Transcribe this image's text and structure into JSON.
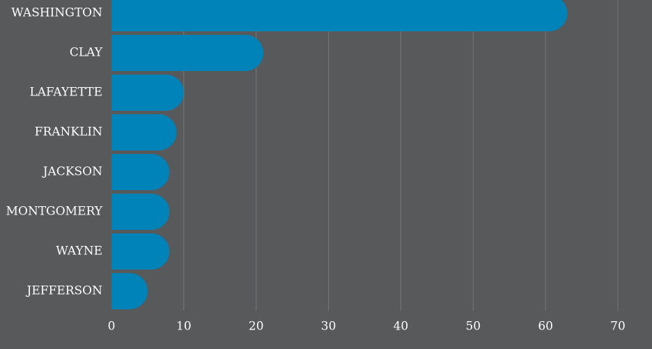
{
  "chart_data": {
    "type": "bar",
    "orientation": "horizontal",
    "categories": [
      "WASHINGTON",
      "CLAY",
      "LAFAYETTE",
      "FRANKLIN",
      "JACKSON",
      "MONTGOMERY",
      "WAYNE",
      "JEFFERSON"
    ],
    "values": [
      63,
      21,
      10,
      9,
      8,
      8,
      8,
      5
    ],
    "x_ticks": [
      0,
      10,
      20,
      30,
      40,
      50,
      60,
      70
    ],
    "xlim": [
      0,
      70
    ],
    "title": "",
    "xlabel": "",
    "ylabel": "",
    "grid": "vertical",
    "legend": "none",
    "colors": {
      "bar": "#0083b9",
      "background": "#58595b",
      "grid": "#77787a",
      "text": "#ffffff"
    }
  }
}
